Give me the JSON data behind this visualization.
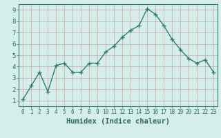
{
  "x": [
    0,
    1,
    2,
    3,
    4,
    5,
    6,
    7,
    8,
    9,
    10,
    11,
    12,
    13,
    14,
    15,
    16,
    17,
    18,
    19,
    20,
    21,
    22,
    23
  ],
  "y": [
    1.1,
    2.3,
    3.5,
    1.8,
    4.1,
    4.3,
    3.5,
    3.5,
    4.3,
    4.3,
    5.3,
    5.8,
    6.6,
    7.2,
    7.6,
    9.1,
    8.6,
    7.6,
    6.4,
    5.5,
    4.7,
    4.3,
    4.6,
    3.5
  ],
  "line_color": "#2d7d6e",
  "marker": "+",
  "marker_size": 4,
  "marker_lw": 1.0,
  "line_width": 1.0,
  "bg_color": "#d6eeea",
  "grid_color": "#c8a8a8",
  "xlabel": "Humidex (Indice chaleur)",
  "xlim": [
    -0.5,
    23.5
  ],
  "ylim": [
    0.5,
    9.5
  ],
  "yticks": [
    1,
    2,
    3,
    4,
    5,
    6,
    7,
    8,
    9
  ],
  "xticks": [
    0,
    1,
    2,
    3,
    4,
    5,
    6,
    7,
    8,
    9,
    10,
    11,
    12,
    13,
    14,
    15,
    16,
    17,
    18,
    19,
    20,
    21,
    22,
    23
  ],
  "xtick_fontsize": 5.5,
  "ytick_fontsize": 6.5,
  "xlabel_fontsize": 7.5,
  "xlabel_color": "#2d6b5e",
  "spine_color": "#2d7d6e",
  "tick_color": "#2d6b5e"
}
